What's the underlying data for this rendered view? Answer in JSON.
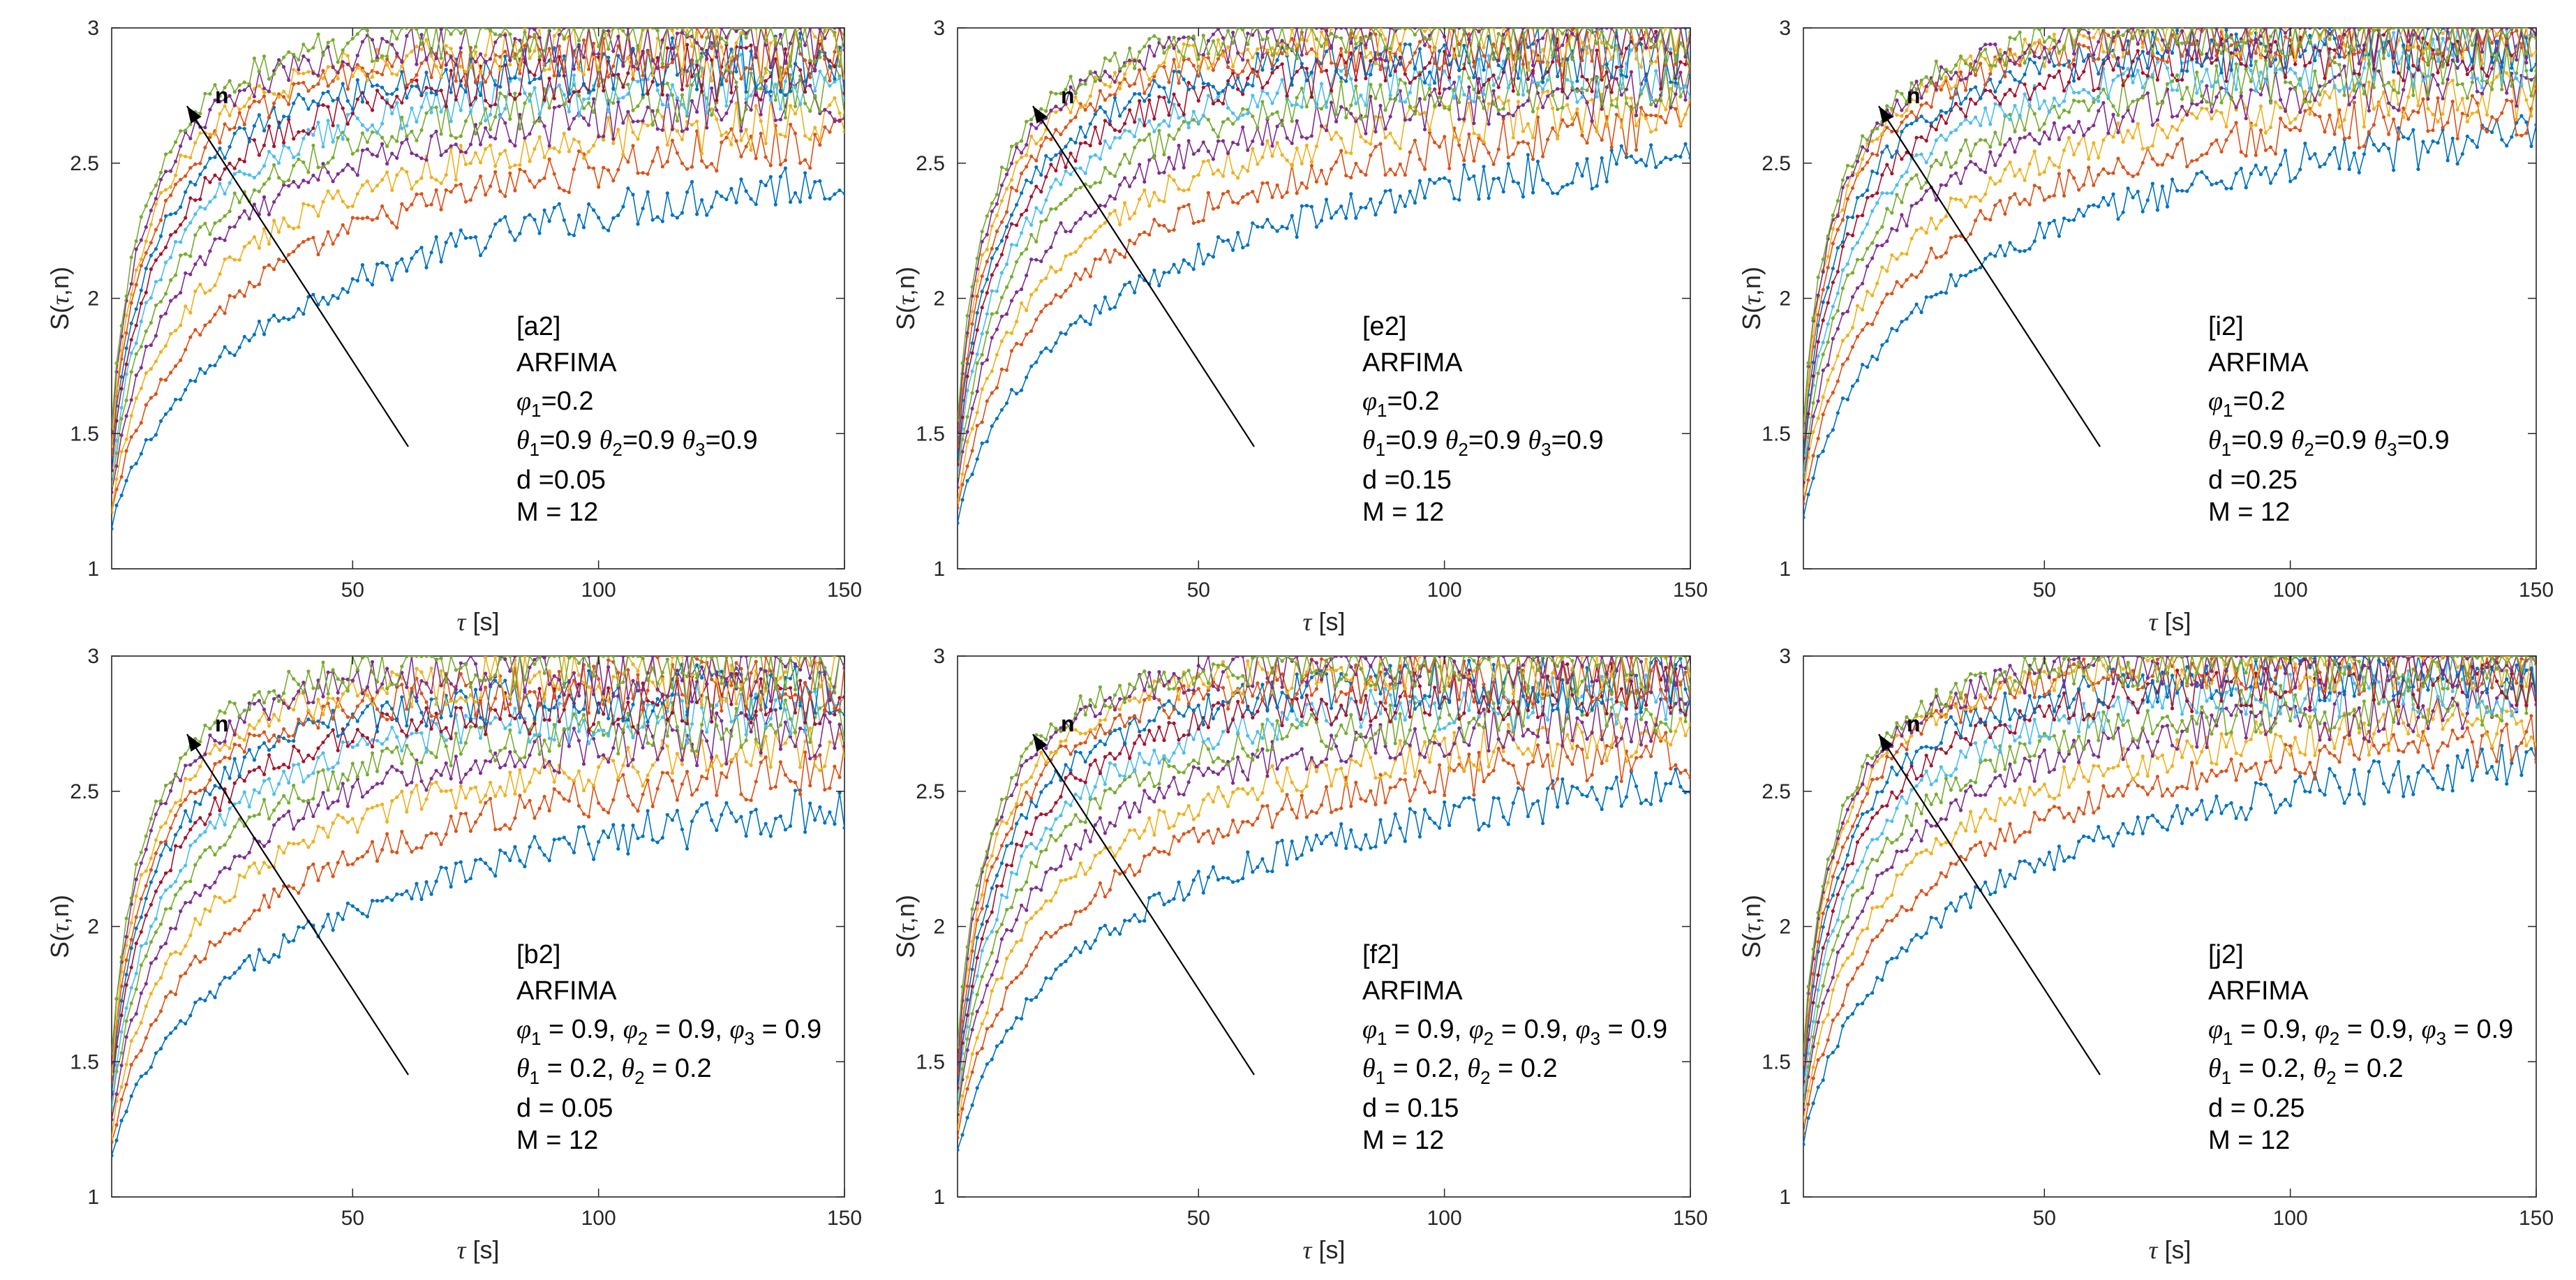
{
  "figure": {
    "x_label_symbol": "τ",
    "x_label_unit": "[s]",
    "y_label_pre": "S(",
    "y_label_symbol": "τ",
    "y_label_post": ",n)",
    "arrow_label": "n"
  },
  "chart_data": [
    {
      "type": "line",
      "id": "a2",
      "title": "[a2]",
      "model": "ARFIMA",
      "phi_line": {
        "symbol": "φ",
        "parts": [
          {
            "i": "1",
            "v": "=0.2"
          }
        ],
        "sep": ""
      },
      "theta_line": {
        "symbol": "θ",
        "parts": [
          {
            "i": "1",
            "v": "=0.9"
          },
          {
            "i": "2",
            "v": "=0.9"
          },
          {
            "i": "3",
            "v": "=0.9"
          }
        ],
        "sep": " "
      },
      "d_text": "d =0.05",
      "m_text": "M = 12",
      "d": 0.05,
      "n_series": 12,
      "xlim": [
        1,
        150
      ],
      "ylim": [
        1,
        3
      ],
      "xticks": [
        50,
        100,
        150
      ],
      "yticks": [
        1,
        1.5,
        2,
        2.5,
        3
      ],
      "xlabel": "τ [s]",
      "ylabel": "S(τ,n)"
    },
    {
      "type": "line",
      "id": "e2",
      "title": "[e2]",
      "model": "ARFIMA",
      "phi_line": {
        "symbol": "φ",
        "parts": [
          {
            "i": "1",
            "v": "=0.2"
          }
        ],
        "sep": ""
      },
      "theta_line": {
        "symbol": "θ",
        "parts": [
          {
            "i": "1",
            "v": "=0.9"
          },
          {
            "i": "2",
            "v": "=0.9"
          },
          {
            "i": "3",
            "v": "=0.9"
          }
        ],
        "sep": " "
      },
      "d_text": "d =0.15",
      "m_text": "M = 12",
      "d": 0.15,
      "n_series": 12,
      "xlim": [
        1,
        150
      ],
      "ylim": [
        1,
        3
      ],
      "xticks": [
        50,
        100,
        150
      ],
      "yticks": [
        1,
        1.5,
        2,
        2.5,
        3
      ],
      "xlabel": "τ [s]",
      "ylabel": "S(τ,n)"
    },
    {
      "type": "line",
      "id": "i2",
      "title": "[i2]",
      "model": "ARFIMA",
      "phi_line": {
        "symbol": "φ",
        "parts": [
          {
            "i": "1",
            "v": "=0.2"
          }
        ],
        "sep": ""
      },
      "theta_line": {
        "symbol": "θ",
        "parts": [
          {
            "i": "1",
            "v": "=0.9"
          },
          {
            "i": "2",
            "v": "=0.9"
          },
          {
            "i": "3",
            "v": "=0.9"
          }
        ],
        "sep": " "
      },
      "d_text": "d =0.25",
      "m_text": "M = 12",
      "d": 0.25,
      "n_series": 12,
      "xlim": [
        1,
        150
      ],
      "ylim": [
        1,
        3
      ],
      "xticks": [
        50,
        100,
        150
      ],
      "yticks": [
        1,
        1.5,
        2,
        2.5,
        3
      ],
      "xlabel": "τ [s]",
      "ylabel": "S(τ,n)"
    },
    {
      "type": "line",
      "id": "b2",
      "title": "[b2]",
      "model": "ARFIMA",
      "phi_line": {
        "symbol": "φ",
        "parts": [
          {
            "i": "1",
            "v": " = 0.9"
          },
          {
            "i": "2",
            "v": " = 0.9"
          },
          {
            "i": "3",
            "v": " = 0.9"
          }
        ],
        "sep": ", "
      },
      "theta_line": {
        "symbol": "θ",
        "parts": [
          {
            "i": "1",
            "v": " = 0.2"
          },
          {
            "i": "2",
            "v": " = 0.2"
          }
        ],
        "sep": ", "
      },
      "d_text": "d = 0.05",
      "m_text": "M = 12",
      "d": 0.05,
      "n_series": 12,
      "xlim": [
        1,
        150
      ],
      "ylim": [
        1,
        3
      ],
      "xticks": [
        50,
        100,
        150
      ],
      "yticks": [
        1,
        1.5,
        2,
        2.5,
        3
      ],
      "xlabel": "τ [s]",
      "ylabel": "S(τ,n)"
    },
    {
      "type": "line",
      "id": "f2",
      "title": "[f2]",
      "model": "ARFIMA",
      "phi_line": {
        "symbol": "φ",
        "parts": [
          {
            "i": "1",
            "v": " = 0.9"
          },
          {
            "i": "2",
            "v": " = 0.9"
          },
          {
            "i": "3",
            "v": " = 0.9"
          }
        ],
        "sep": ", "
      },
      "theta_line": {
        "symbol": "θ",
        "parts": [
          {
            "i": "1",
            "v": " = 0.2"
          },
          {
            "i": "2",
            "v": " = 0.2"
          }
        ],
        "sep": ", "
      },
      "d_text": "d = 0.15",
      "m_text": "M = 12",
      "d": 0.15,
      "n_series": 12,
      "xlim": [
        1,
        150
      ],
      "ylim": [
        1,
        3
      ],
      "xticks": [
        50,
        100,
        150
      ],
      "yticks": [
        1,
        1.5,
        2,
        2.5,
        3
      ],
      "xlabel": "τ [s]",
      "ylabel": "S(τ,n)"
    },
    {
      "type": "line",
      "id": "j2",
      "title": "[j2]",
      "model": "ARFIMA",
      "phi_line": {
        "symbol": "φ",
        "parts": [
          {
            "i": "1",
            "v": " = 0.9"
          },
          {
            "i": "2",
            "v": " = 0.9"
          },
          {
            "i": "3",
            "v": " = 0.9"
          }
        ],
        "sep": ", "
      },
      "theta_line": {
        "symbol": "θ",
        "parts": [
          {
            "i": "1",
            "v": " = 0.2"
          },
          {
            "i": "2",
            "v": " = 0.2"
          }
        ],
        "sep": ", "
      },
      "d_text": "d = 0.25",
      "m_text": "M = 12",
      "d": 0.25,
      "n_series": 12,
      "xlim": [
        1,
        150
      ],
      "ylim": [
        1,
        3
      ],
      "xticks": [
        50,
        100,
        150
      ],
      "yticks": [
        1,
        1.5,
        2,
        2.5,
        3
      ],
      "xlabel": "τ [s]",
      "ylabel": "S(τ,n)"
    }
  ],
  "colors": {
    "series": [
      "#0072BD",
      "#D95319",
      "#EDB120",
      "#7E2F8E",
      "#77AC30",
      "#4DBEEE",
      "#A2142F"
    ],
    "axes": "#262626",
    "arrow": "#000000"
  }
}
